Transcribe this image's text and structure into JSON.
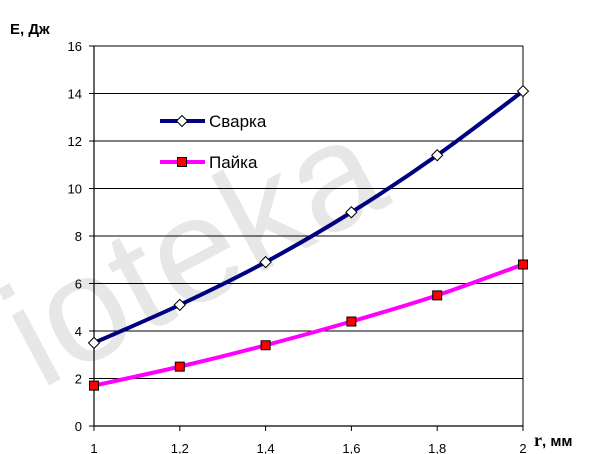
{
  "chart_data": {
    "type": "line",
    "ylabel": "E, Дж",
    "xlabel_var": "r",
    "xlabel_unit": ", мм",
    "xlim": [
      1,
      2
    ],
    "ylim": [
      0,
      16
    ],
    "xticks": [
      1,
      1.2,
      1.4,
      1.6,
      1.8,
      2
    ],
    "yticks": [
      0,
      2,
      4,
      6,
      8,
      10,
      12,
      14,
      16
    ],
    "x": [
      1,
      1.2,
      1.4,
      1.6,
      1.8,
      2
    ],
    "grid": "horizontal",
    "legend_position": "upper-left",
    "series": [
      {
        "name": "Сварка",
        "color": "#000080",
        "marker": "diamond",
        "marker_fill": "#ffffff",
        "values": [
          3.5,
          5.1,
          6.9,
          9.0,
          11.4,
          14.1
        ]
      },
      {
        "name": "Пайка",
        "color": "#ff00ff",
        "marker": "square",
        "marker_fill": "#ff0000",
        "values": [
          1.7,
          2.5,
          3.4,
          4.4,
          5.5,
          6.8
        ]
      }
    ]
  },
  "watermark": "ioteka"
}
